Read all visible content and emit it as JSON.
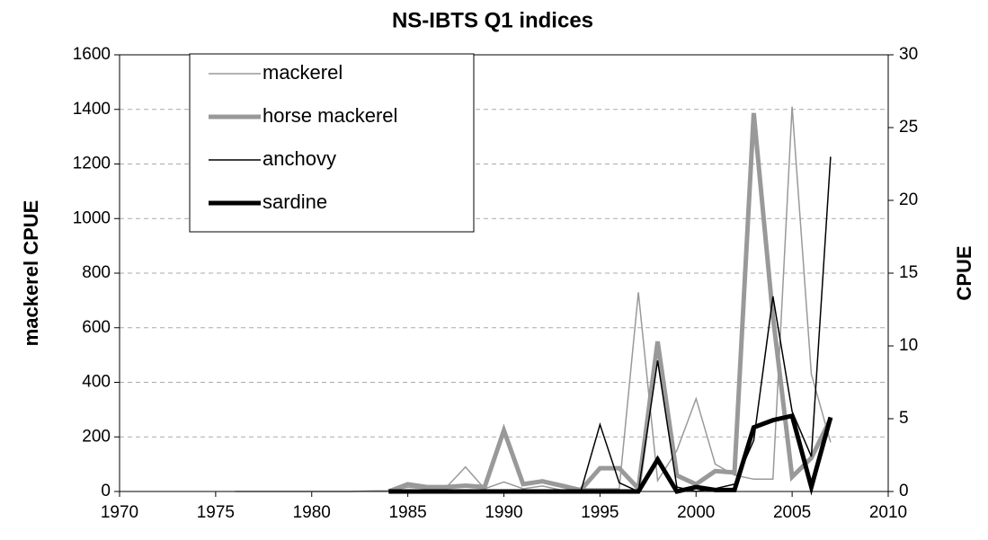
{
  "chart_data": {
    "type": "line",
    "title": "NS-IBTS Q1 indices",
    "y_label": "mackerel CPUE",
    "y2_label": "CPUE",
    "x": [
      1976,
      1977,
      1978,
      1979,
      1980,
      1981,
      1982,
      1983,
      1984,
      1985,
      1986,
      1987,
      1988,
      1989,
      1990,
      1991,
      1992,
      1993,
      1994,
      1995,
      1996,
      1997,
      1998,
      1999,
      2000,
      2001,
      2002,
      2003,
      2004,
      2005,
      2006,
      2007
    ],
    "series": [
      {
        "name": "mackerel",
        "color": "#999999",
        "line_width": 1.5,
        "values": [
          0,
          0,
          0,
          0,
          0,
          0,
          0,
          2,
          3,
          15,
          10,
          15,
          90,
          10,
          35,
          10,
          20,
          5,
          10,
          10,
          10,
          730,
          40,
          150,
          340,
          100,
          60,
          45,
          45,
          1410,
          430,
          180
        ]
      },
      {
        "name": "horse mackerel",
        "color": "#999999",
        "line_width": 5,
        "axis": "y2",
        "values": [
          null,
          null,
          null,
          null,
          null,
          null,
          null,
          null,
          0,
          0.5,
          0.3,
          0.3,
          0.4,
          0.3,
          4.2,
          0.5,
          0.7,
          0.4,
          0.1,
          1.6,
          1.6,
          0.2,
          10.3,
          1.1,
          0.5,
          1.4,
          1.3,
          26,
          12,
          1.0,
          2.3,
          5
        ]
      },
      {
        "name": "anchovy",
        "color": "#000000",
        "line_width": 1.5,
        "axis": "y2",
        "values": [
          null,
          null,
          null,
          null,
          null,
          null,
          null,
          null,
          0,
          0,
          0,
          0,
          0,
          0,
          0,
          0,
          0,
          0,
          0,
          4.6,
          0.6,
          0,
          9,
          0.3,
          0,
          0.2,
          0.5,
          3.5,
          13.4,
          5.5,
          2.4,
          23
        ]
      },
      {
        "name": "sardine",
        "color": "#000000",
        "line_width": 5,
        "axis": "y2",
        "values": [
          null,
          null,
          null,
          null,
          null,
          null,
          null,
          null,
          0,
          0,
          0,
          0,
          0,
          0,
          0,
          0,
          0,
          0,
          0,
          0,
          0,
          0,
          2.2,
          0,
          0.3,
          0.1,
          0.1,
          4.4,
          4.9,
          5.2,
          0.3,
          5.1
        ]
      }
    ],
    "xlim": [
      1970,
      2010
    ],
    "xticks": [
      1970,
      1975,
      1980,
      1985,
      1990,
      1995,
      2000,
      2005,
      2010
    ],
    "ylim": [
      0,
      1600
    ],
    "yticks": [
      0,
      200,
      400,
      600,
      800,
      1000,
      1200,
      1400,
      1600
    ],
    "y2lim": [
      0,
      30
    ],
    "y2ticks": [
      0,
      5,
      10,
      15,
      20,
      25,
      30
    ],
    "grid": true,
    "legend": "upper left"
  }
}
